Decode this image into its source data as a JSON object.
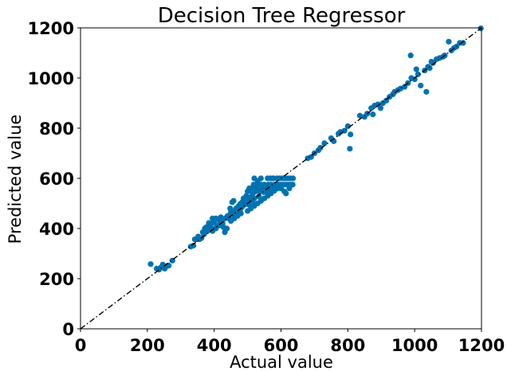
{
  "chart_data": {
    "type": "scatter",
    "title": "Decision Tree Regressor",
    "xlabel": "Actual value",
    "ylabel": "Predicted value",
    "xlim": [
      0,
      1200
    ],
    "ylim": [
      0,
      1200
    ],
    "xticks": [
      0,
      200,
      400,
      600,
      800,
      1000,
      1200
    ],
    "yticks": [
      0,
      200,
      400,
      600,
      800,
      1000,
      1200
    ],
    "grid": false,
    "point_color": "#0072b2",
    "reference_line": {
      "style": "dash-dot",
      "color": "#000000",
      "from": [
        0,
        0
      ],
      "to": [
        1200,
        1200
      ]
    },
    "series": [
      {
        "points": [
          [
            210,
            258
          ],
          [
            228,
            240
          ],
          [
            235,
            236
          ],
          [
            240,
            244
          ],
          [
            246,
            256
          ],
          [
            252,
            240
          ],
          [
            258,
            250
          ],
          [
            264,
            252
          ],
          [
            275,
            272
          ],
          [
            330,
            328
          ],
          [
            338,
            332
          ],
          [
            342,
            357
          ],
          [
            348,
            357
          ],
          [
            352,
            368
          ],
          [
            356,
            357
          ],
          [
            362,
            362
          ],
          [
            366,
            385
          ],
          [
            370,
            378
          ],
          [
            372,
            400
          ],
          [
            376,
            405
          ],
          [
            380,
            390
          ],
          [
            384,
            422
          ],
          [
            388,
            405
          ],
          [
            392,
            420
          ],
          [
            395,
            440
          ],
          [
            398,
            398
          ],
          [
            400,
            425
          ],
          [
            405,
            440
          ],
          [
            408,
            410
          ],
          [
            412,
            438
          ],
          [
            418,
            425
          ],
          [
            420,
            445
          ],
          [
            425,
            420
          ],
          [
            428,
            405
          ],
          [
            432,
            385
          ],
          [
            438,
            400
          ],
          [
            440,
            450
          ],
          [
            444,
            440
          ],
          [
            448,
            480
          ],
          [
            450,
            465
          ],
          [
            454,
            505
          ],
          [
            458,
            510
          ],
          [
            460,
            455
          ],
          [
            462,
            470
          ],
          [
            466,
            480
          ],
          [
            470,
            472
          ],
          [
            472,
            488
          ],
          [
            478,
            498
          ],
          [
            480,
            480
          ],
          [
            484,
            505
          ],
          [
            488,
            520
          ],
          [
            490,
            495
          ],
          [
            492,
            508
          ],
          [
            496,
            530
          ],
          [
            500,
            512
          ],
          [
            504,
            495
          ],
          [
            508,
            525
          ],
          [
            510,
            548
          ],
          [
            512,
            560
          ],
          [
            516,
            540
          ],
          [
            518,
            575
          ],
          [
            520,
            520
          ],
          [
            524,
            548
          ],
          [
            528,
            560
          ],
          [
            530,
            575
          ],
          [
            534,
            528
          ],
          [
            536,
            548
          ],
          [
            540,
            575
          ],
          [
            544,
            560
          ],
          [
            548,
            545
          ],
          [
            550,
            575
          ],
          [
            554,
            548
          ],
          [
            558,
            560
          ],
          [
            562,
            575
          ],
          [
            566,
            548
          ],
          [
            568,
            600
          ],
          [
            570,
            575
          ],
          [
            574,
            560
          ],
          [
            578,
            600
          ],
          [
            580,
            575
          ],
          [
            584,
            560
          ],
          [
            588,
            600
          ],
          [
            592,
            575
          ],
          [
            596,
            600
          ],
          [
            600,
            575
          ],
          [
            604,
            600
          ],
          [
            608,
            575
          ],
          [
            612,
            600
          ],
          [
            616,
            575
          ],
          [
            620,
            600
          ],
          [
            624,
            575
          ],
          [
            628,
            600
          ],
          [
            632,
            575
          ],
          [
            636,
            600
          ],
          [
            450,
            430
          ],
          [
            460,
            440
          ],
          [
            470,
            450
          ],
          [
            480,
            460
          ],
          [
            500,
            470
          ],
          [
            510,
            480
          ],
          [
            520,
            490
          ],
          [
            530,
            500
          ],
          [
            540,
            510
          ],
          [
            550,
            520
          ],
          [
            560,
            530
          ],
          [
            570,
            540
          ],
          [
            580,
            550
          ],
          [
            590,
            560
          ],
          [
            395,
            390
          ],
          [
            405,
            400
          ],
          [
            415,
            412
          ],
          [
            425,
            432
          ],
          [
            435,
            442
          ],
          [
            445,
            452
          ],
          [
            455,
            462
          ],
          [
            465,
            470
          ],
          [
            475,
            478
          ],
          [
            485,
            488
          ],
          [
            495,
            498
          ],
          [
            505,
            502
          ],
          [
            515,
            510
          ],
          [
            500,
            548
          ],
          [
            505,
            560
          ],
          [
            520,
            600
          ],
          [
            530,
            590
          ],
          [
            540,
            600
          ],
          [
            560,
            600
          ],
          [
            575,
            600
          ],
          [
            590,
            575
          ],
          [
            600,
            560
          ],
          [
            610,
            548
          ],
          [
            615,
            540
          ],
          [
            625,
            560
          ],
          [
            635,
            575
          ],
          [
            680,
            680
          ],
          [
            690,
            685
          ],
          [
            700,
            700
          ],
          [
            712,
            712
          ],
          [
            718,
            722
          ],
          [
            730,
            740
          ],
          [
            750,
            760
          ],
          [
            758,
            748
          ],
          [
            772,
            778
          ],
          [
            778,
            785
          ],
          [
            790,
            790
          ],
          [
            800,
            808
          ],
          [
            806,
            718
          ],
          [
            808,
            775
          ],
          [
            836,
            850
          ],
          [
            850,
            845
          ],
          [
            858,
            858
          ],
          [
            870,
            880
          ],
          [
            875,
            855
          ],
          [
            880,
            890
          ],
          [
            890,
            895
          ],
          [
            898,
            880
          ],
          [
            905,
            900
          ],
          [
            915,
            910
          ],
          [
            925,
            925
          ],
          [
            935,
            935
          ],
          [
            940,
            945
          ],
          [
            950,
            952
          ],
          [
            958,
            958
          ],
          [
            970,
            965
          ],
          [
            980,
            980
          ],
          [
            988,
            1090
          ],
          [
            990,
            1000
          ],
          [
            1000,
            995
          ],
          [
            1005,
            1035
          ],
          [
            1010,
            1015
          ],
          [
            1018,
            970
          ],
          [
            1030,
            1030
          ],
          [
            1035,
            945
          ],
          [
            1040,
            1045
          ],
          [
            1045,
            1040
          ],
          [
            1050,
            1065
          ],
          [
            1055,
            1060
          ],
          [
            1065,
            1075
          ],
          [
            1075,
            1080
          ],
          [
            1085,
            1085
          ],
          [
            1090,
            1090
          ],
          [
            1102,
            1145
          ],
          [
            1110,
            1110
          ],
          [
            1118,
            1120
          ],
          [
            1125,
            1125
          ],
          [
            1135,
            1140
          ],
          [
            1145,
            1140
          ],
          [
            1198,
            1198
          ]
        ]
      }
    ]
  }
}
